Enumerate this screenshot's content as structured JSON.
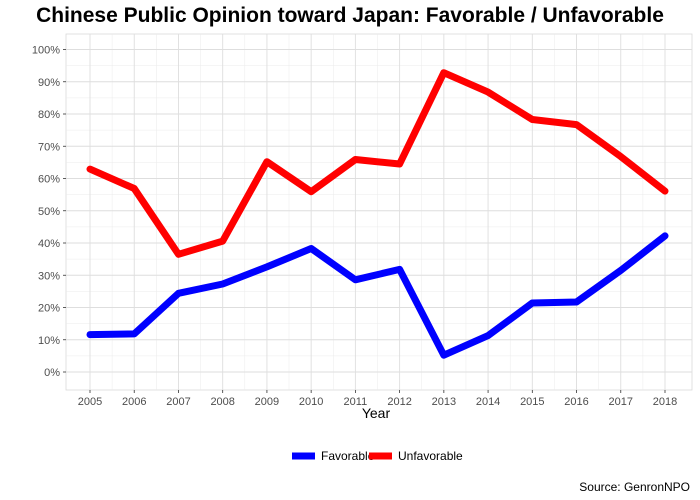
{
  "chart_data": {
    "type": "line",
    "title": "Chinese Public Opinion toward Japan: Favorable / Unfavorable",
    "xlabel": "Year",
    "ylabel": "",
    "x": [
      2005,
      2006,
      2007,
      2008,
      2009,
      2010,
      2011,
      2012,
      2013,
      2014,
      2015,
      2016,
      2017,
      2018
    ],
    "ylim": [
      0,
      100
    ],
    "yticks": [
      "0%",
      "10%",
      "20%",
      "30%",
      "40%",
      "50%",
      "60%",
      "70%",
      "80%",
      "90%",
      "100%"
    ],
    "grid": true,
    "legend": "bottom",
    "series": [
      {
        "name": "Favorable",
        "color": "#0000ff",
        "values": [
          11.6,
          11.8,
          24.4,
          27.3,
          32.6,
          38.3,
          28.6,
          31.8,
          5.2,
          11.3,
          21.4,
          21.7,
          31.5,
          42.2
        ]
      },
      {
        "name": "Unfavorable",
        "color": "#ff0000",
        "values": [
          62.9,
          56.9,
          36.5,
          40.6,
          65.2,
          55.9,
          65.9,
          64.5,
          92.8,
          86.8,
          78.3,
          76.7,
          66.8,
          56.1
        ]
      }
    ],
    "caption": "Source: GenronNPO"
  }
}
